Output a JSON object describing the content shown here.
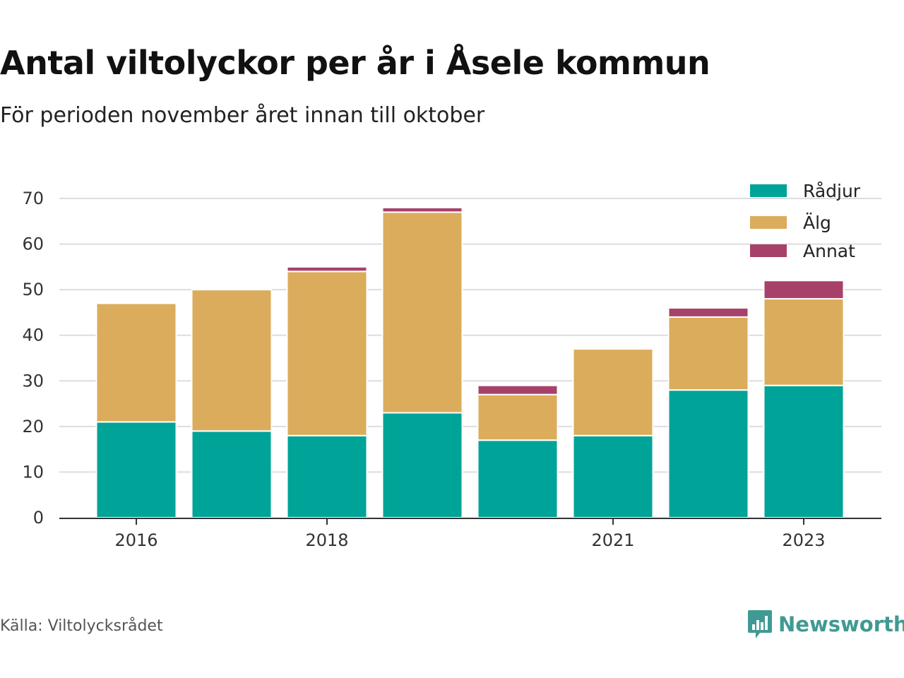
{
  "title": "Antal viltolyckor per år i Åsele kommun",
  "subtitle": "För perioden november året innan till oktober",
  "source": "Källa: Viltolycksrådet",
  "brand": {
    "name": "Newsworthy",
    "icon": "bar-chart-logo-icon",
    "color": "#3f9a93"
  },
  "chart_data": {
    "type": "bar",
    "stacked": true,
    "categories": [
      "2016",
      "2017",
      "2018",
      "2019",
      "2020",
      "2021",
      "2022",
      "2023"
    ],
    "x_tick_labels": [
      "2016",
      "",
      "2018",
      "",
      "",
      "2021",
      "",
      "2023"
    ],
    "series": [
      {
        "name": "Rådjur",
        "color": "#00a398",
        "values": [
          21,
          19,
          18,
          23,
          17,
          18,
          28,
          29
        ]
      },
      {
        "name": "Älg",
        "color": "#dbac5b",
        "values": [
          26,
          31,
          36,
          44,
          10,
          19,
          16,
          19
        ]
      },
      {
        "name": "Annat",
        "color": "#a8416a",
        "values": [
          0,
          0,
          1,
          1,
          2,
          0,
          2,
          4
        ]
      }
    ],
    "ylim": [
      0,
      70
    ],
    "yticks": [
      0,
      10,
      20,
      30,
      40,
      50,
      60,
      70
    ],
    "grid": true,
    "legend_position": "top-right",
    "xlabel": "",
    "ylabel": ""
  }
}
